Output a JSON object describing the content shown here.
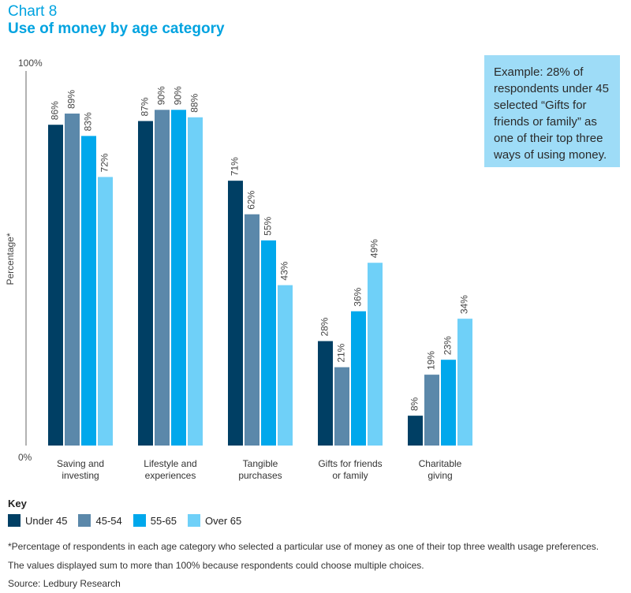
{
  "header": {
    "chart_label": "Chart 8",
    "title": "Use of money by age category"
  },
  "callout": "Example: 28% of respondents under 45 selected “Gifts for friends or family” as one of their top three ways of using money.",
  "key_title": "Key",
  "footnotes": {
    "note": "*Percentage of respondents in each age category who selected a particular use of money as one of their top three wealth usage preferences.",
    "multi": "The values displayed sum to more than 100% because respondents could choose multiple choices.",
    "source": "Source: Ledbury Research"
  },
  "colors": {
    "Under 45": "#003f64",
    "45-54": "#5b88aa",
    "55-65": "#00a8ec",
    "Over 65": "#6fd0f8",
    "axis": "#666666"
  },
  "chart_data": {
    "type": "bar",
    "ylabel": "Percentage*",
    "ylim": [
      0,
      100
    ],
    "ytick_labels": [
      "0%",
      "100%"
    ],
    "categories": [
      [
        "Saving and",
        "investing"
      ],
      [
        "Lifestyle and",
        "experiences"
      ],
      [
        "Tangible",
        "purchases"
      ],
      [
        "Gifts for friends",
        "or family"
      ],
      [
        "Charitable",
        "giving"
      ]
    ],
    "series": [
      {
        "name": "Under 45",
        "values": [
          86,
          87,
          71,
          28,
          8
        ]
      },
      {
        "name": "45-54",
        "values": [
          89,
          90,
          62,
          21,
          19
        ]
      },
      {
        "name": "55-65",
        "values": [
          83,
          90,
          55,
          36,
          23
        ]
      },
      {
        "name": "Over 65",
        "values": [
          72,
          88,
          43,
          49,
          34
        ]
      }
    ],
    "value_suffix": "%",
    "grid": false,
    "legend": "bottom-left"
  }
}
